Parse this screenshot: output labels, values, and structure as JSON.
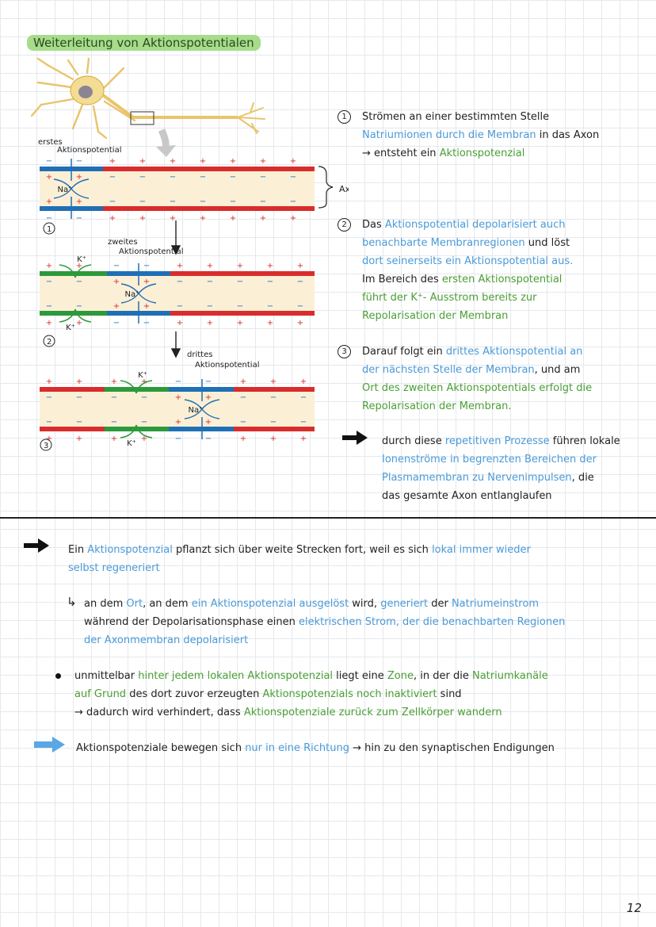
{
  "title": "Weiterleitung von Aktionspotentialen",
  "figure": {
    "label_first": [
      "erstes",
      "Aktionspotential"
    ],
    "label_second": [
      "zweites",
      "Aktionspotential"
    ],
    "label_third": [
      "drittes",
      "Aktionspotential"
    ],
    "axon_segment": "Axonsegment",
    "step_numbers": [
      "1",
      "2",
      "3"
    ],
    "ion_na": "Na⁺",
    "ion_k": "K⁺",
    "plus": "+",
    "minus": "−"
  },
  "steps": [
    {
      "num": "1",
      "parts": [
        {
          "t": "Strömen an einer bestimmten Stelle",
          "c": "blk",
          "br": true
        },
        {
          "t": "Natriumionen durch die Membran",
          "c": "blue"
        },
        {
          "t": " in das Axon",
          "c": "blk",
          "br": true
        },
        {
          "t": "→ entsteht ein ",
          "c": "blk"
        },
        {
          "t": "Aktionspotenzial",
          "c": "green"
        }
      ]
    },
    {
      "num": "2",
      "parts": [
        {
          "t": "Das ",
          "c": "blk"
        },
        {
          "t": "Aktionspotential depolarisiert auch",
          "c": "blue",
          "br": true
        },
        {
          "t": "benachbarte Membranregionen",
          "c": "blue"
        },
        {
          "t": " und löst",
          "c": "blk",
          "br": true
        },
        {
          "t": "dort seinerseits ein Aktionspotential aus.",
          "c": "blue",
          "br": true
        },
        {
          "t": "Im Bereich des ",
          "c": "blk"
        },
        {
          "t": "ersten Aktionspotential",
          "c": "green",
          "br": true
        },
        {
          "t": "führt der K⁺- Ausstrom bereits zur",
          "c": "green",
          "br": true
        },
        {
          "t": "Repolarisation der Membran",
          "c": "green"
        }
      ]
    },
    {
      "num": "3",
      "parts": [
        {
          "t": "Darauf folgt ein ",
          "c": "blk"
        },
        {
          "t": "drittes Aktionspotential an",
          "c": "blue",
          "br": true
        },
        {
          "t": "der nächsten Stelle der Membran",
          "c": "blue"
        },
        {
          "t": ", und am",
          "c": "blk",
          "br": true
        },
        {
          "t": "Ort des zweiten Aktionspotentials erfolgt die",
          "c": "green",
          "br": true
        },
        {
          "t": "Repolarisation der Membran.",
          "c": "green"
        }
      ]
    }
  ],
  "arrow_note": [
    {
      "t": "durch diese ",
      "c": "blk"
    },
    {
      "t": "repetitiven Prozesse",
      "c": "blue"
    },
    {
      "t": " führen lokale",
      "c": "blk",
      "br": true
    },
    {
      "t": "Ionenströme in begrenzten Bereichen der",
      "c": "blue",
      "br": true
    },
    {
      "t": "Plasmamembran zu Nervenimpulsen",
      "c": "blue"
    },
    {
      "t": ", die",
      "c": "blk",
      "br": true
    },
    {
      "t": "das gesamte Axon entlanglaufen",
      "c": "blk"
    }
  ],
  "lower": {
    "block1": [
      {
        "t": "Ein ",
        "c": "blk"
      },
      {
        "t": "Aktionspotenzial",
        "c": "blue"
      },
      {
        "t": " pflanzt sich über weite Strecken fort, weil es sich ",
        "c": "blk"
      },
      {
        "t": "lokal immer wieder",
        "c": "blue",
        "br": true
      },
      {
        "t": "selbst regeneriert",
        "c": "blue"
      }
    ],
    "block2_marker": "↳",
    "block2": [
      {
        "t": "an dem ",
        "c": "blk"
      },
      {
        "t": "Ort",
        "c": "blue"
      },
      {
        "t": ", an dem ",
        "c": "blk"
      },
      {
        "t": "ein Aktionspotenzial ausgelöst",
        "c": "blue"
      },
      {
        "t": " wird, ",
        "c": "blk"
      },
      {
        "t": "generiert",
        "c": "blue"
      },
      {
        "t": " der ",
        "c": "blk"
      },
      {
        "t": "Natriumeinstrom",
        "c": "blue",
        "br": true
      },
      {
        "t": "während der Depolarisationsphase einen ",
        "c": "blk"
      },
      {
        "t": "elektrischen Strom, der die benachbarten Regionen",
        "c": "blue",
        "br": true
      },
      {
        "t": "der Axonmembran depolarisiert",
        "c": "blue"
      }
    ],
    "block3": [
      {
        "t": "unmittelbar ",
        "c": "blk"
      },
      {
        "t": "hinter jedem lokalen Aktionspotenzial",
        "c": "green"
      },
      {
        "t": " liegt eine ",
        "c": "blk"
      },
      {
        "t": "Zone",
        "c": "green"
      },
      {
        "t": ", in der die ",
        "c": "blk"
      },
      {
        "t": "Natriumkanäle",
        "c": "green",
        "br": true
      },
      {
        "t": "auf Grund",
        "c": "green"
      },
      {
        "t": " des dort zuvor erzeugten ",
        "c": "blk"
      },
      {
        "t": "Aktionspotenzials noch inaktiviert",
        "c": "green"
      },
      {
        "t": " sind",
        "c": "blk",
        "br": true
      },
      {
        "t": "→ dadurch wird verhindert, dass ",
        "c": "blk"
      },
      {
        "t": "Aktionspotenziale zurück zum Zellkörper wandern",
        "c": "green"
      }
    ],
    "block4": [
      {
        "t": "Aktionspotenziale bewegen sich ",
        "c": "blk"
      },
      {
        "t": "nur in eine Richtung",
        "c": "blue"
      },
      {
        "t": " → hin zu den synaptischen Endigungen",
        "c": "blk"
      }
    ]
  },
  "colors": {
    "depolarized": "#1f6fb5",
    "resting": "#d92c2c",
    "repolarizing": "#2c9a3b",
    "axoplasm": "#fbefd6",
    "note_blue": "#4a9ad8",
    "note_green": "#4a9e35"
  },
  "page_number": "12"
}
